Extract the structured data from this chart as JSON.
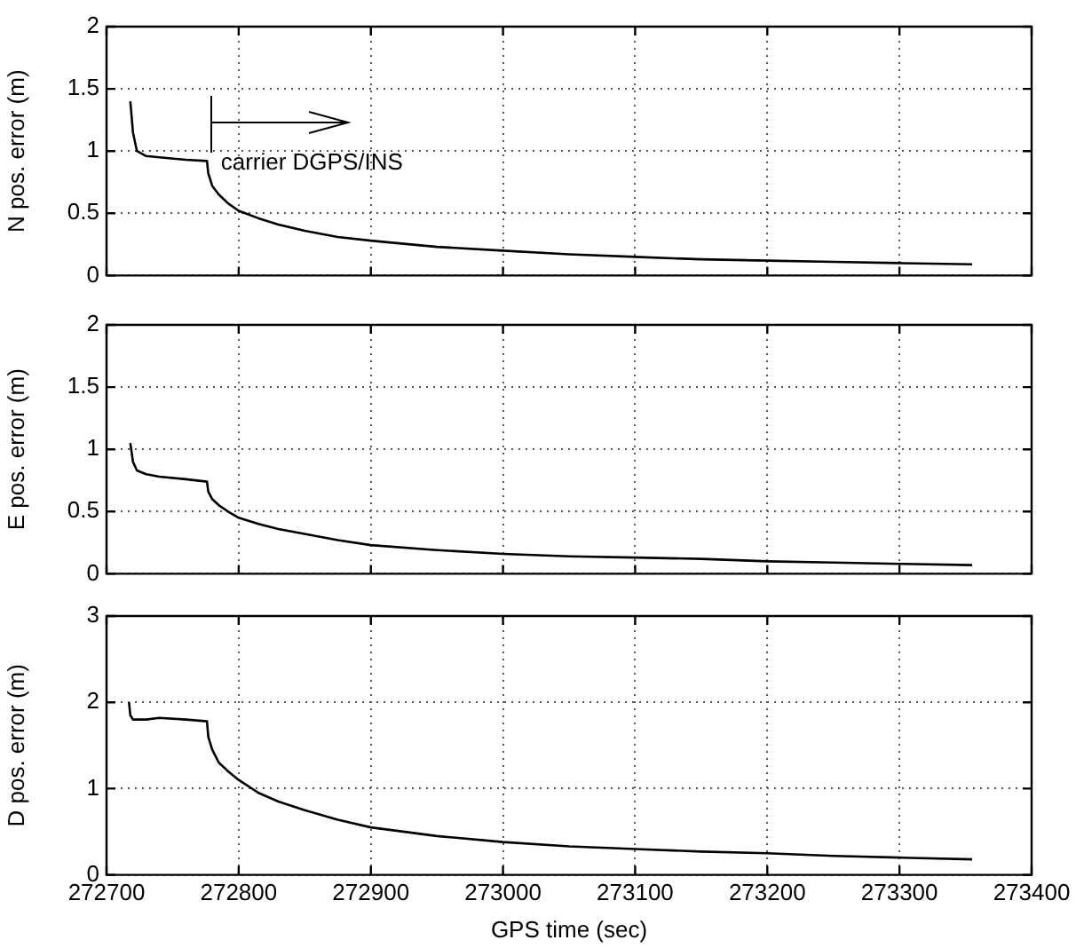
{
  "chart_data": [
    {
      "type": "line",
      "ylabel": "N pos. error (m)",
      "xlim": [
        272700,
        273400
      ],
      "xticks": [
        272700,
        272800,
        272900,
        273000,
        273100,
        273200,
        273300,
        273400
      ],
      "ylim": [
        0,
        2
      ],
      "yticks": [
        0,
        0.5,
        1,
        1.5,
        2
      ],
      "grid": true,
      "legend": false,
      "tick_labels": "y",
      "annotations": [
        "carrier DGPS/INS"
      ],
      "series": [
        {
          "color": "#000000",
          "x": [
            272718,
            272720,
            272723,
            272730,
            272740,
            272760,
            272776,
            272777,
            272780,
            272785,
            272792,
            272800,
            272815,
            272830,
            272850,
            272875,
            272900,
            272950,
            273000,
            273050,
            273100,
            273150,
            273200,
            273250,
            273300,
            273355
          ],
          "values": [
            1.4,
            1.15,
            1.0,
            0.96,
            0.95,
            0.93,
            0.92,
            0.82,
            0.72,
            0.65,
            0.58,
            0.52,
            0.46,
            0.41,
            0.36,
            0.31,
            0.28,
            0.23,
            0.2,
            0.17,
            0.15,
            0.13,
            0.12,
            0.11,
            0.1,
            0.09
          ]
        }
      ]
    },
    {
      "type": "line",
      "ylabel": "E pos. error (m)",
      "xlim": [
        272700,
        273400
      ],
      "xticks": [
        272700,
        272800,
        272900,
        273000,
        273100,
        273200,
        273300,
        273400
      ],
      "ylim": [
        0,
        2
      ],
      "yticks": [
        0,
        0.5,
        1,
        1.5,
        2
      ],
      "grid": true,
      "legend": false,
      "tick_labels": "y",
      "series": [
        {
          "color": "#000000",
          "x": [
            272718,
            272720,
            272723,
            272730,
            272740,
            272760,
            272776,
            272777,
            272780,
            272785,
            272792,
            272800,
            272815,
            272830,
            272850,
            272875,
            272900,
            272950,
            273000,
            273050,
            273100,
            273150,
            273200,
            273250,
            273300,
            273355
          ],
          "values": [
            1.05,
            0.9,
            0.83,
            0.8,
            0.78,
            0.76,
            0.74,
            0.66,
            0.6,
            0.55,
            0.5,
            0.45,
            0.4,
            0.36,
            0.32,
            0.27,
            0.23,
            0.19,
            0.16,
            0.14,
            0.13,
            0.12,
            0.1,
            0.09,
            0.08,
            0.07
          ]
        }
      ]
    },
    {
      "type": "line",
      "xlabel": "GPS time (sec)",
      "ylabel": "D pos. error (m)",
      "xlim": [
        272700,
        273400
      ],
      "xticks": [
        272700,
        272800,
        272900,
        273000,
        273100,
        273200,
        273300,
        273400
      ],
      "ylim": [
        0,
        3
      ],
      "yticks": [
        0,
        1,
        2,
        3
      ],
      "grid": true,
      "legend": false,
      "series": [
        {
          "color": "#000000",
          "x": [
            272717,
            272718,
            272720,
            272730,
            272740,
            272760,
            272776,
            272777,
            272780,
            272785,
            272792,
            272800,
            272815,
            272830,
            272850,
            272875,
            272900,
            272950,
            273000,
            273050,
            273100,
            273150,
            273200,
            273250,
            273300,
            273355
          ],
          "values": [
            2.0,
            1.85,
            1.8,
            1.8,
            1.82,
            1.8,
            1.78,
            1.6,
            1.45,
            1.3,
            1.2,
            1.1,
            0.95,
            0.85,
            0.75,
            0.64,
            0.55,
            0.45,
            0.38,
            0.33,
            0.3,
            0.27,
            0.25,
            0.22,
            0.2,
            0.18
          ]
        }
      ]
    }
  ]
}
